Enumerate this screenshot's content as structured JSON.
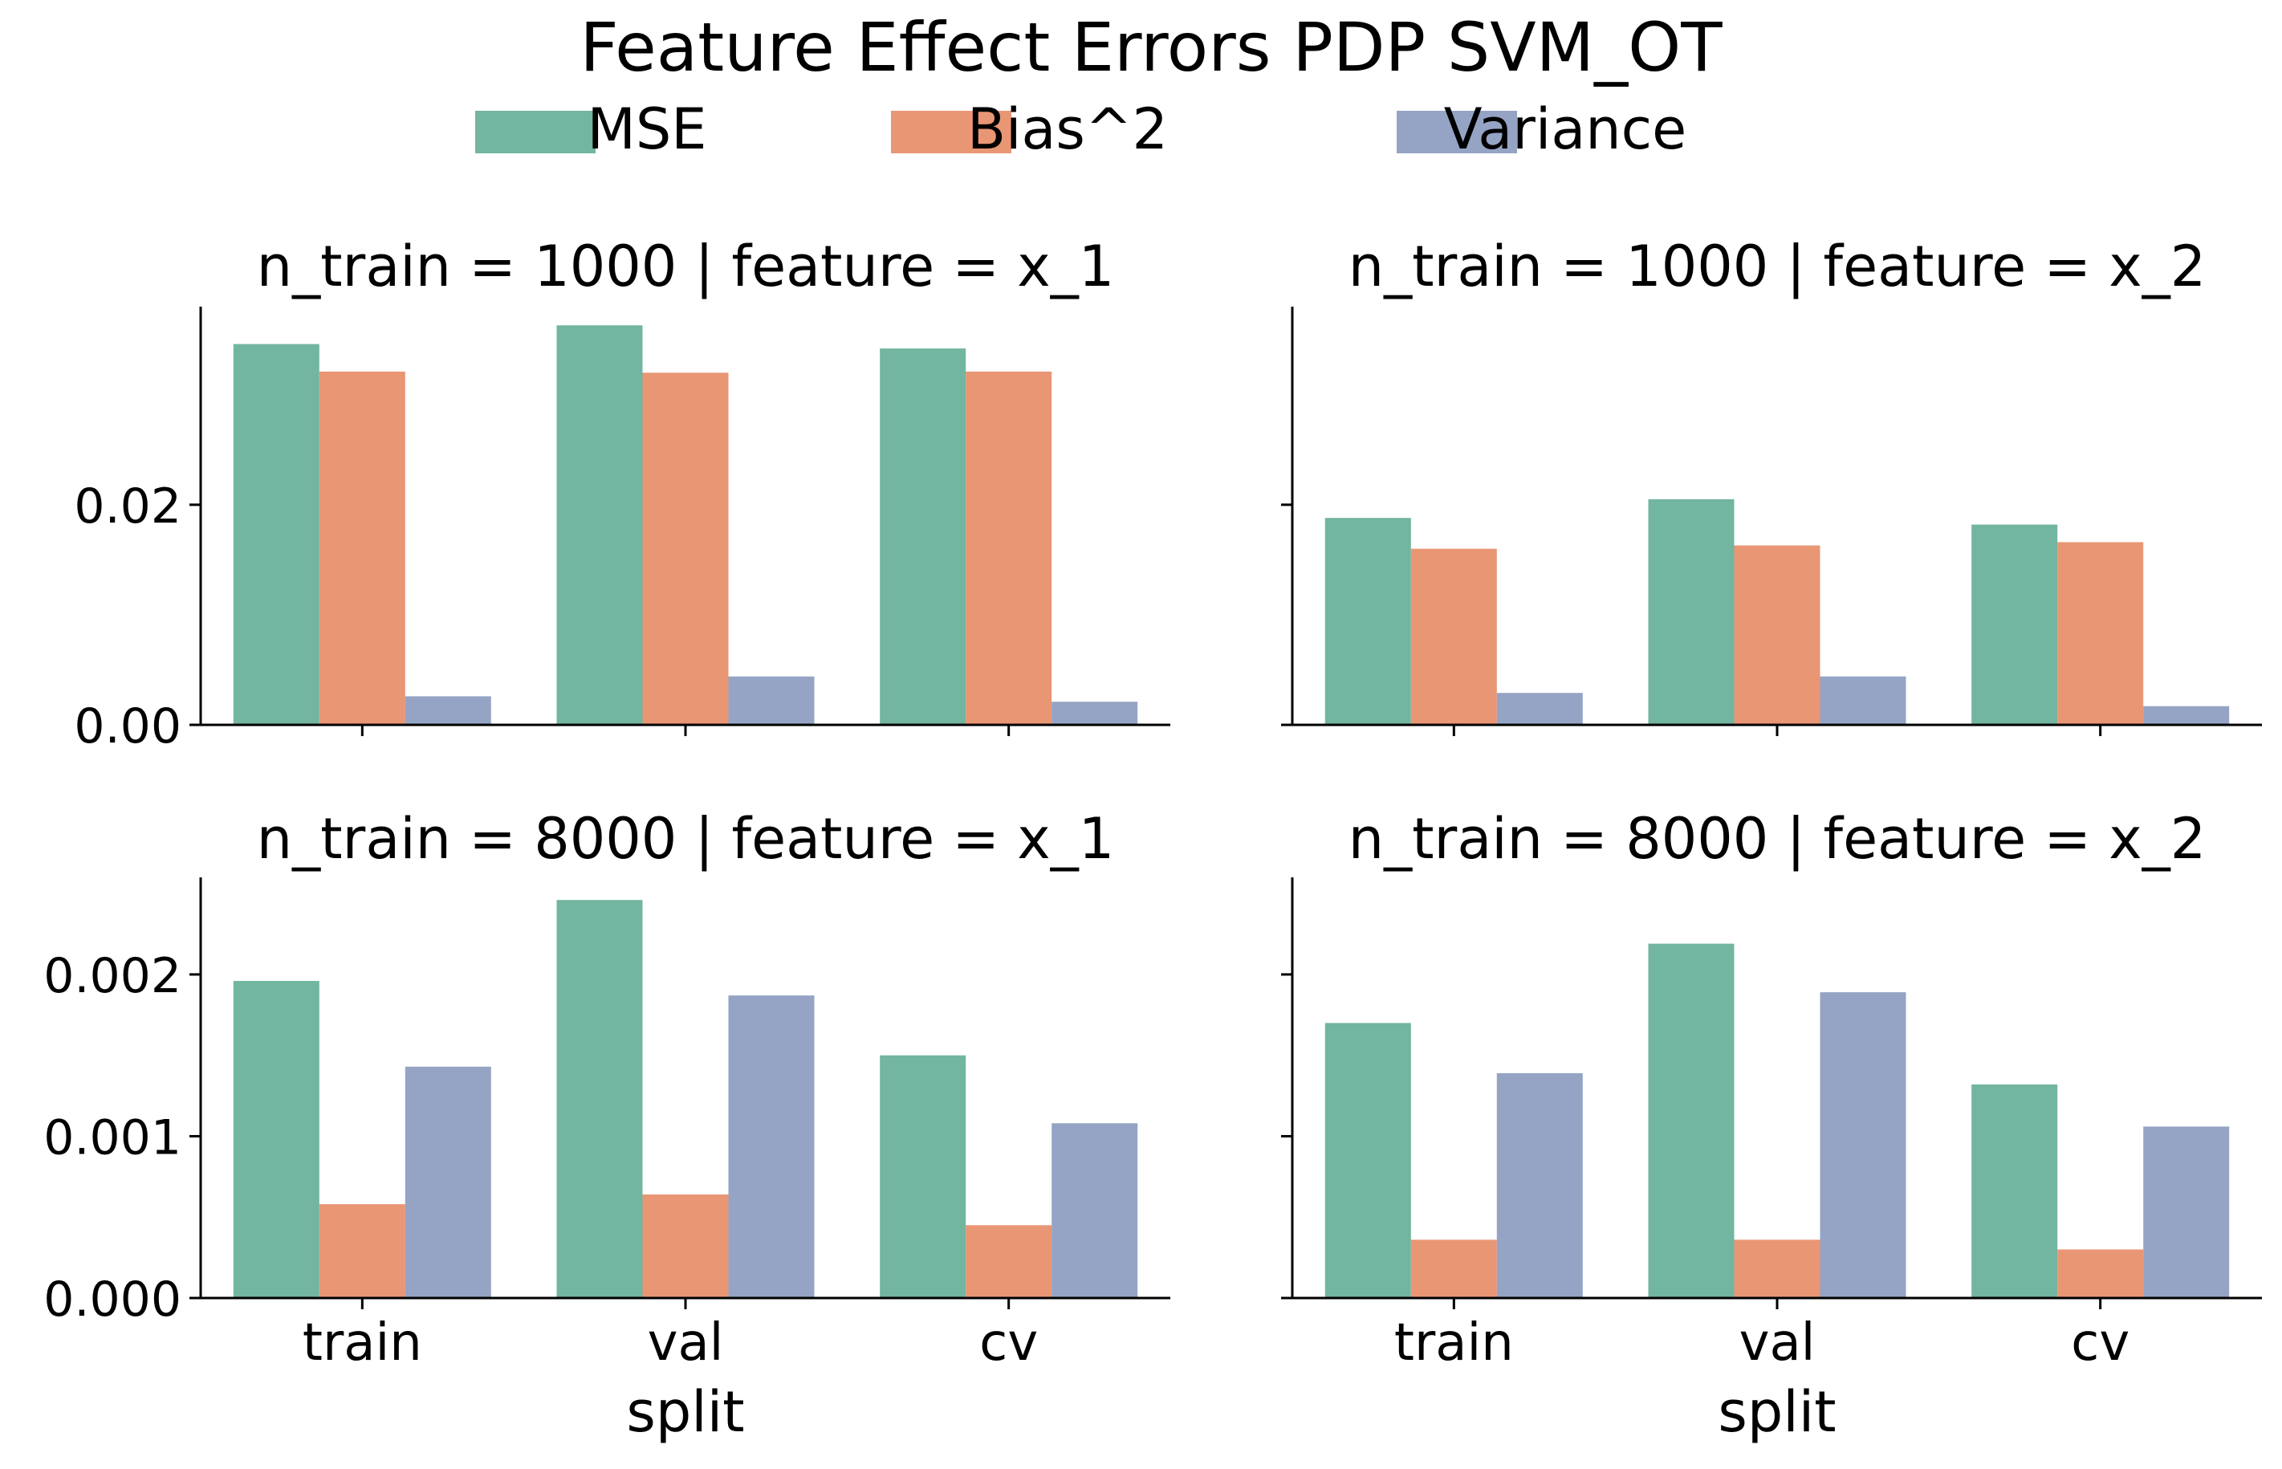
{
  "figure": {
    "title": "Feature Effect Errors PDP SVM_OT"
  },
  "legend": {
    "placement": "top-center",
    "entries": [
      {
        "label": "MSE",
        "color": "#72b5a0"
      },
      {
        "label": "Bias^2",
        "color": "#e99675"
      },
      {
        "label": "Variance",
        "color": "#95a4c4"
      }
    ]
  },
  "chart_data": [
    {
      "type": "bar",
      "title": "n_train = 1000 | feature = x_1",
      "xlabel": "",
      "ylabel": "",
      "categories": [
        "train",
        "val",
        "cv"
      ],
      "ylim": [
        0,
        0.038
      ],
      "yticks": [
        0.0,
        0.02
      ],
      "ytick_labels": [
        "0.00",
        "0.02"
      ],
      "show_xtick_labels": false,
      "series": [
        {
          "name": "MSE",
          "values": [
            0.0346,
            0.0363,
            0.0342
          ]
        },
        {
          "name": "Bias^2",
          "values": [
            0.0321,
            0.032,
            0.0321
          ]
        },
        {
          "name": "Variance",
          "values": [
            0.0026,
            0.0044,
            0.0021
          ]
        }
      ]
    },
    {
      "type": "bar",
      "title": "n_train = 1000 | feature = x_2",
      "xlabel": "",
      "ylabel": "",
      "categories": [
        "train",
        "val",
        "cv"
      ],
      "ylim": [
        0,
        0.038
      ],
      "yticks": [
        0.0,
        0.02
      ],
      "ytick_labels": [
        "",
        ""
      ],
      "show_xtick_labels": false,
      "series": [
        {
          "name": "MSE",
          "values": [
            0.0188,
            0.0205,
            0.0182
          ]
        },
        {
          "name": "Bias^2",
          "values": [
            0.016,
            0.0163,
            0.0166
          ]
        },
        {
          "name": "Variance",
          "values": [
            0.0029,
            0.0044,
            0.0017
          ]
        }
      ]
    },
    {
      "type": "bar",
      "title": "n_train = 8000 | feature = x_1",
      "xlabel": "split",
      "ylabel": "",
      "categories": [
        "train",
        "val",
        "cv"
      ],
      "ylim": [
        0,
        0.0026
      ],
      "yticks": [
        0.0,
        0.001,
        0.002
      ],
      "ytick_labels": [
        "0.000",
        "0.001",
        "0.002"
      ],
      "show_xtick_labels": true,
      "series": [
        {
          "name": "MSE",
          "values": [
            0.00196,
            0.00246,
            0.0015
          ]
        },
        {
          "name": "Bias^2",
          "values": [
            0.00058,
            0.00064,
            0.00045
          ]
        },
        {
          "name": "Variance",
          "values": [
            0.00143,
            0.00187,
            0.00108
          ]
        }
      ]
    },
    {
      "type": "bar",
      "title": "n_train = 8000 | feature = x_2",
      "xlabel": "split",
      "ylabel": "",
      "categories": [
        "train",
        "val",
        "cv"
      ],
      "ylim": [
        0,
        0.0026
      ],
      "yticks": [
        0.0,
        0.001,
        0.002
      ],
      "ytick_labels": [
        "",
        "",
        ""
      ],
      "show_xtick_labels": true,
      "series": [
        {
          "name": "MSE",
          "values": [
            0.0017,
            0.00219,
            0.00132
          ]
        },
        {
          "name": "Bias^2",
          "values": [
            0.00036,
            0.00036,
            0.0003
          ]
        },
        {
          "name": "Variance",
          "values": [
            0.00139,
            0.00189,
            0.00106
          ]
        }
      ]
    }
  ]
}
